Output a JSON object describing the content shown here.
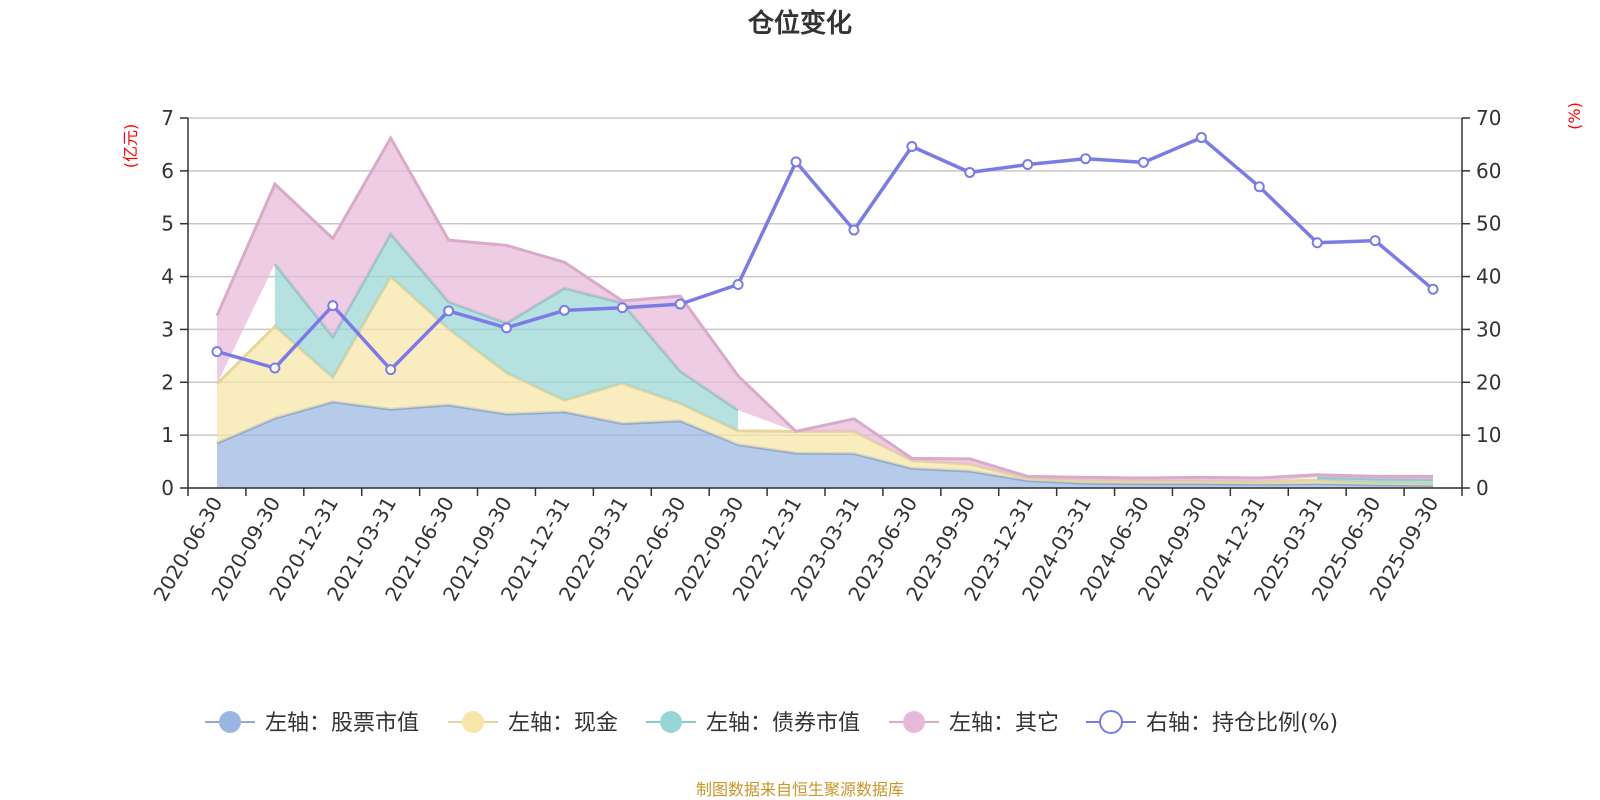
{
  "chart_data": {
    "type": "area",
    "title": "仓位变化",
    "left_unit": "(亿元)",
    "right_unit": "(%)",
    "categories": [
      "2020-06-30",
      "2020-09-30",
      "2020-12-31",
      "2021-03-31",
      "2021-06-30",
      "2021-09-30",
      "2021-12-31",
      "2022-03-31",
      "2022-06-30",
      "2022-09-30",
      "2022-12-31",
      "2023-03-31",
      "2023-06-30",
      "2023-09-30",
      "2023-12-31",
      "2024-03-31",
      "2024-06-30",
      "2024-09-30",
      "2024-12-31",
      "2025-03-31",
      "2025-06-30",
      "2025-09-30"
    ],
    "left_axis": {
      "min": 0,
      "max": 7,
      "ticks": [
        0,
        1,
        2,
        3,
        4,
        5,
        6,
        7
      ]
    },
    "right_axis": {
      "min": 0,
      "max": 70,
      "ticks": [
        0,
        10,
        20,
        30,
        40,
        50,
        60,
        70
      ]
    },
    "grid": true,
    "legend_position": "bottom",
    "series": [
      {
        "name": "左轴：股票市值",
        "axis": "left",
        "kind": "area",
        "color": "#9ab6e0",
        "values": [
          0.85,
          1.32,
          1.63,
          1.49,
          1.57,
          1.4,
          1.44,
          1.22,
          1.27,
          0.82,
          0.66,
          0.65,
          0.37,
          0.32,
          0.14,
          0.09,
          0.08,
          0.08,
          0.07,
          0.08,
          0.06,
          0.05
        ]
      },
      {
        "name": "左轴：现金",
        "axis": "left",
        "kind": "area",
        "color": "#f7e6a8",
        "values": [
          1.12,
          1.74,
          0.46,
          2.51,
          1.44,
          0.78,
          0.22,
          0.76,
          0.33,
          0.26,
          0.41,
          0.42,
          0.15,
          0.13,
          0.04,
          0.05,
          0.05,
          0.05,
          0.05,
          0.07,
          0.04,
          0.03
        ]
      },
      {
        "name": "左轴：债券市值",
        "axis": "left",
        "kind": "area",
        "color": "#98d6d6",
        "values": [
          null,
          1.18,
          0.77,
          0.81,
          0.51,
          0.94,
          2.12,
          1.52,
          0.61,
          0.39,
          null,
          null,
          null,
          null,
          null,
          null,
          null,
          null,
          null,
          0.05,
          0.07,
          0.08
        ]
      },
      {
        "name": "左轴：其它",
        "axis": "left",
        "kind": "area",
        "color": "#e8b8d8",
        "values": [
          1.29,
          1.51,
          1.86,
          1.81,
          1.17,
          1.47,
          0.49,
          0.04,
          1.42,
          0.65,
          0.0,
          0.24,
          0.04,
          0.1,
          0.04,
          0.06,
          0.06,
          0.07,
          0.07,
          0.05,
          0.05,
          0.06
        ]
      },
      {
        "name": "右轴：持仓比例(%)",
        "axis": "right",
        "kind": "line",
        "color": "#7b7be8",
        "values": [
          25.8,
          22.7,
          34.5,
          22.4,
          33.5,
          30.3,
          33.6,
          34.1,
          34.8,
          38.5,
          61.7,
          48.8,
          64.6,
          59.7,
          61.2,
          62.3,
          61.6,
          66.3,
          57.0,
          46.4,
          46.8,
          37.6
        ]
      }
    ],
    "source": "制图数据来自恒生聚源数据库"
  }
}
